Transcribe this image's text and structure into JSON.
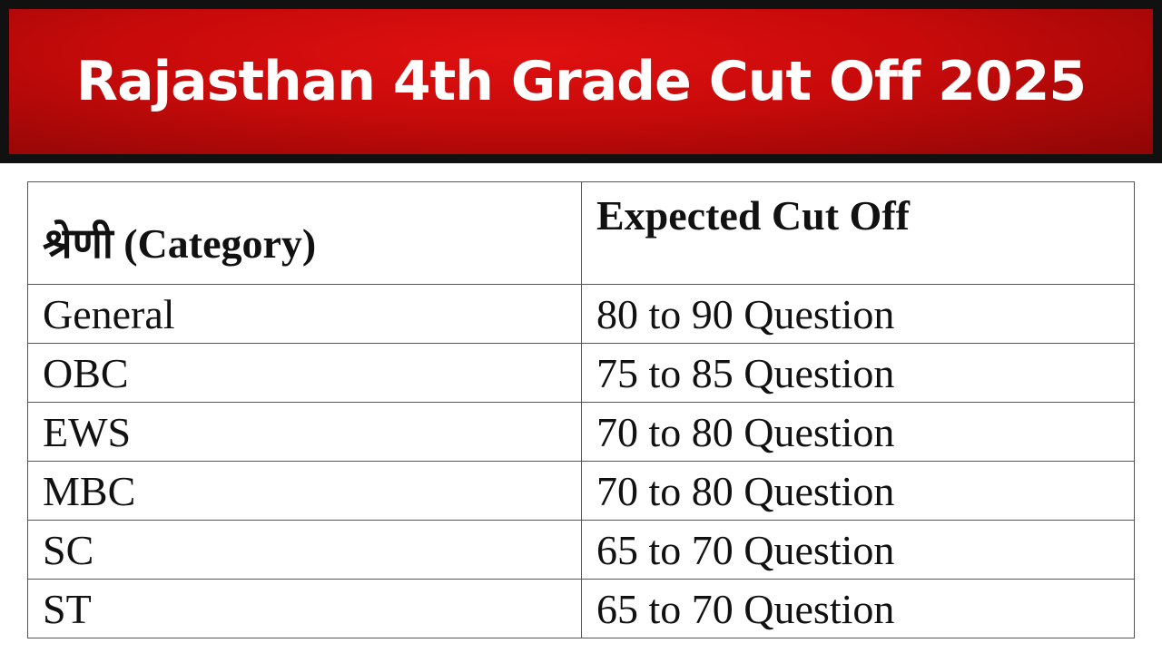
{
  "header": {
    "title": "Rajasthan 4th Grade Cut Off 2025"
  },
  "table": {
    "columns": [
      "श्रेणी (Category)",
      "Expected Cut Off"
    ],
    "rows": [
      [
        "General",
        "80 to 90 Question"
      ],
      [
        "OBC",
        "75 to 85 Question"
      ],
      [
        "EWS",
        "70 to 80 Question"
      ],
      [
        "MBC",
        "70 to 80 Question"
      ],
      [
        "SC",
        "65 to 70 Question"
      ],
      [
        "ST",
        "65 to 70 Question"
      ]
    ]
  }
}
